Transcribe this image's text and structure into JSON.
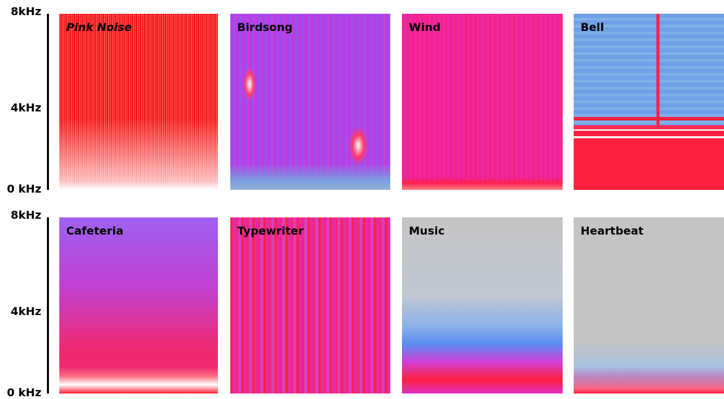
{
  "rows": [
    {
      "axis": {
        "top": "8kHz",
        "middle": "4kHz",
        "bottom": "0 kHz"
      },
      "panels": [
        "Pink Noise",
        "Birdsong",
        "Wind",
        "Bell"
      ]
    },
    {
      "axis": {
        "top": "8kHz",
        "middle": "4kHz",
        "bottom": "0 kHz"
      },
      "panels": [
        "Cafeteria",
        "Typewriter",
        "Music",
        "Heartbeat"
      ]
    }
  ]
}
